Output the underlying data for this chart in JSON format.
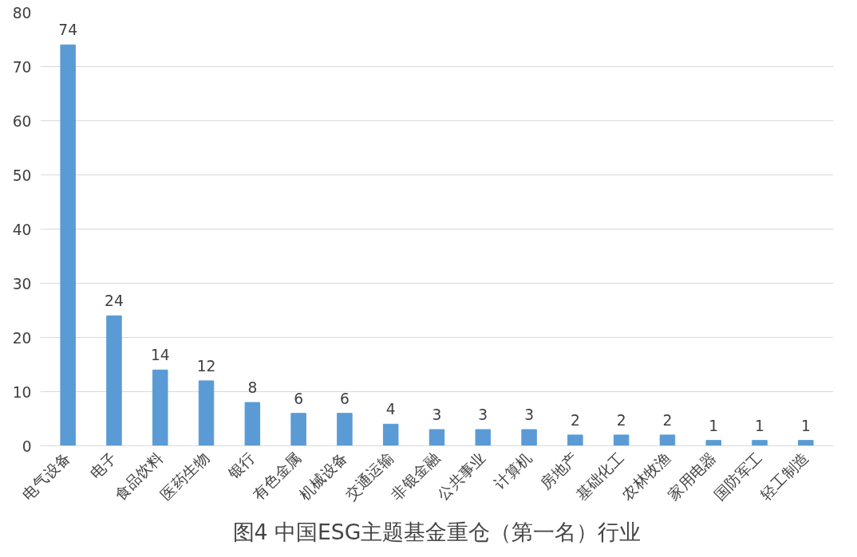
{
  "chart_data": {
    "type": "bar",
    "title": "图4 中国ESG主题基金重仓（第一名）行业",
    "categories": [
      "电气设备",
      "电子",
      "食品饮料",
      "医药生物",
      "银行",
      "有色金属",
      "机械设备",
      "交通运输",
      "非银金融",
      "公共事业",
      "计算机",
      "房地产",
      "基础化工",
      "农林牧渔",
      "家用电器",
      "国防军工",
      "轻工制造"
    ],
    "values": [
      74,
      24,
      14,
      12,
      8,
      6,
      6,
      4,
      3,
      3,
      3,
      2,
      2,
      2,
      1,
      1,
      1
    ],
    "color": "#5b9bd5",
    "ylim": [
      0,
      80
    ],
    "yticks": [
      0,
      10,
      20,
      30,
      40,
      50,
      60,
      70,
      80
    ],
    "grid": "y",
    "data_labels": true
  }
}
